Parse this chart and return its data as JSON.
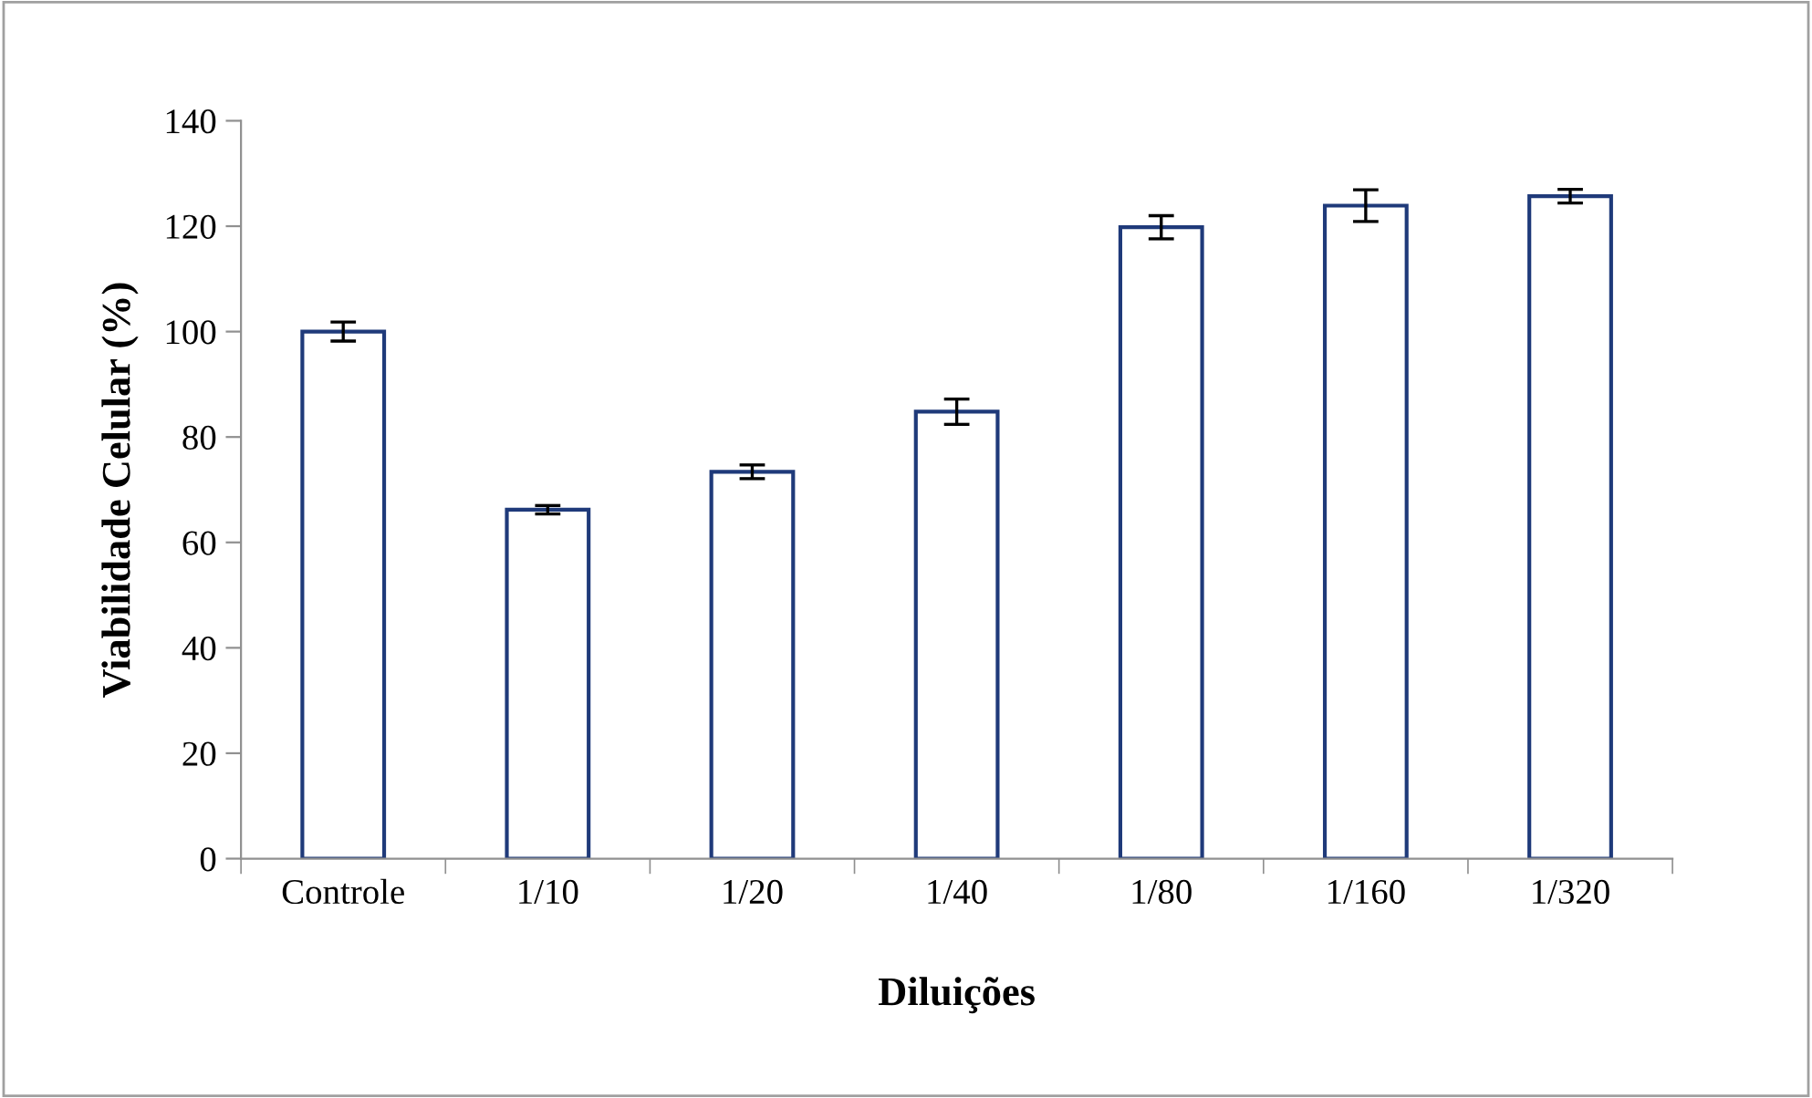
{
  "chart_data": {
    "type": "bar",
    "xlabel": "Diluições",
    "ylabel": "Viabilidade Celular (%)",
    "categories": [
      "Controle",
      "1/10",
      "1/20",
      "1/40",
      "1/80",
      "1/160",
      "1/320"
    ],
    "values": [
      100,
      66.2,
      73.4,
      84.8,
      119.8,
      123.9,
      125.7
    ],
    "errors": [
      1.8,
      0.8,
      1.3,
      2.4,
      2.2,
      3,
      1.3
    ],
    "color": "#1f3a7a",
    "ylim": [
      0,
      140
    ],
    "yticks": [
      0,
      20,
      40,
      60,
      80,
      100,
      120,
      140
    ],
    "grid": false,
    "legend": false
  }
}
